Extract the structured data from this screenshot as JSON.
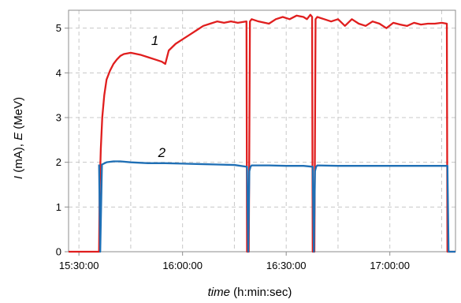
{
  "chart_data": {
    "type": "line",
    "xlabel_italic": "time",
    "xlabel_rest": " (h:min:sec)",
    "ylabel_parts": [
      {
        "text": "I",
        "italic": true
      },
      {
        "text": " (mA), ",
        "italic": false
      },
      {
        "text": "E",
        "italic": true
      },
      {
        "text": " (MeV)",
        "italic": false
      }
    ],
    "xlim": [
      "15:27:00",
      "17:19:00"
    ],
    "ylim": [
      0,
      5.4
    ],
    "x_ticks": [
      "15:30:00",
      "16:00:00",
      "16:30:00",
      "17:00:00"
    ],
    "y_ticks": [
      0,
      1,
      2,
      3,
      4,
      5
    ],
    "grid": true,
    "series": [
      {
        "label": "1",
        "color": "#e01e1e",
        "x": [
          "15:27:00",
          "15:35:50",
          "15:36:00",
          "15:36:20",
          "15:36:45",
          "15:37:20",
          "15:38:00",
          "15:39:00",
          "15:40:00",
          "15:41:00",
          "15:42:00",
          "15:43:00",
          "15:45:00",
          "15:48:00",
          "15:50:00",
          "15:52:00",
          "15:54:00",
          "15:55:00",
          "15:56:00",
          "15:58:00",
          "16:00:00",
          "16:02:00",
          "16:04:00",
          "16:06:00",
          "16:08:00",
          "16:10:00",
          "16:12:00",
          "16:14:00",
          "16:16:00",
          "16:18:30",
          "16:18:40",
          "16:19:10",
          "16:19:30",
          "16:20:00",
          "16:22:00",
          "16:25:00",
          "16:27:00",
          "16:29:00",
          "16:31:00",
          "16:33:00",
          "16:35:00",
          "16:36:00",
          "16:37:00",
          "16:37:30",
          "16:37:40",
          "16:38:10",
          "16:38:30",
          "16:39:00",
          "16:41:00",
          "16:43:00",
          "16:45:00",
          "16:47:00",
          "16:49:00",
          "16:51:00",
          "16:53:00",
          "16:55:00",
          "16:57:00",
          "16:59:00",
          "17:01:00",
          "17:03:00",
          "17:05:00",
          "17:07:00",
          "17:09:00",
          "17:11:00",
          "17:13:00",
          "17:15:00",
          "17:16:30",
          "17:16:40",
          "17:17:00",
          "17:18:00",
          "17:19:00"
        ],
        "y": [
          0,
          0,
          1.4,
          2.3,
          3.0,
          3.5,
          3.85,
          4.05,
          4.2,
          4.3,
          4.38,
          4.42,
          4.45,
          4.4,
          4.35,
          4.3,
          4.25,
          4.2,
          4.5,
          4.65,
          4.75,
          4.85,
          4.95,
          5.05,
          5.1,
          5.15,
          5.12,
          5.15,
          5.12,
          5.15,
          0,
          0,
          5.15,
          5.2,
          5.15,
          5.1,
          5.2,
          5.25,
          5.2,
          5.28,
          5.25,
          5.2,
          5.3,
          5.25,
          0,
          0,
          5.2,
          5.25,
          5.2,
          5.15,
          5.2,
          5.05,
          5.2,
          5.1,
          5.05,
          5.15,
          5.1,
          5.0,
          5.12,
          5.08,
          5.05,
          5.12,
          5.08,
          5.1,
          5.1,
          5.12,
          5.1,
          0,
          0,
          0,
          0
        ]
      },
      {
        "label": "2",
        "color": "#1f6fb5",
        "x": [
          "15:35:50",
          "15:36:10",
          "15:36:40",
          "15:38:00",
          "15:40:00",
          "15:42:00",
          "15:45:00",
          "15:50:00",
          "15:55:00",
          "16:00:00",
          "16:05:00",
          "16:10:00",
          "16:15:00",
          "16:18:40",
          "16:19:00",
          "16:19:20",
          "16:19:40",
          "16:20:00",
          "16:25:00",
          "16:30:00",
          "16:35:00",
          "16:37:40",
          "16:38:00",
          "16:38:20",
          "16:38:40",
          "16:39:00",
          "16:45:00",
          "16:50:00",
          "16:55:00",
          "17:00:00",
          "17:05:00",
          "17:10:00",
          "17:16:40",
          "17:17:00",
          "17:17:20",
          "17:19:00"
        ],
        "y": [
          1.95,
          0,
          1.95,
          2.0,
          2.02,
          2.02,
          2.0,
          1.98,
          1.98,
          1.97,
          1.96,
          1.95,
          1.94,
          1.9,
          0,
          1.8,
          1.9,
          1.93,
          1.93,
          1.92,
          1.92,
          1.9,
          0,
          1.8,
          1.9,
          1.93,
          1.92,
          1.92,
          1.92,
          1.92,
          1.92,
          1.92,
          1.92,
          0,
          0,
          0
        ]
      }
    ]
  }
}
